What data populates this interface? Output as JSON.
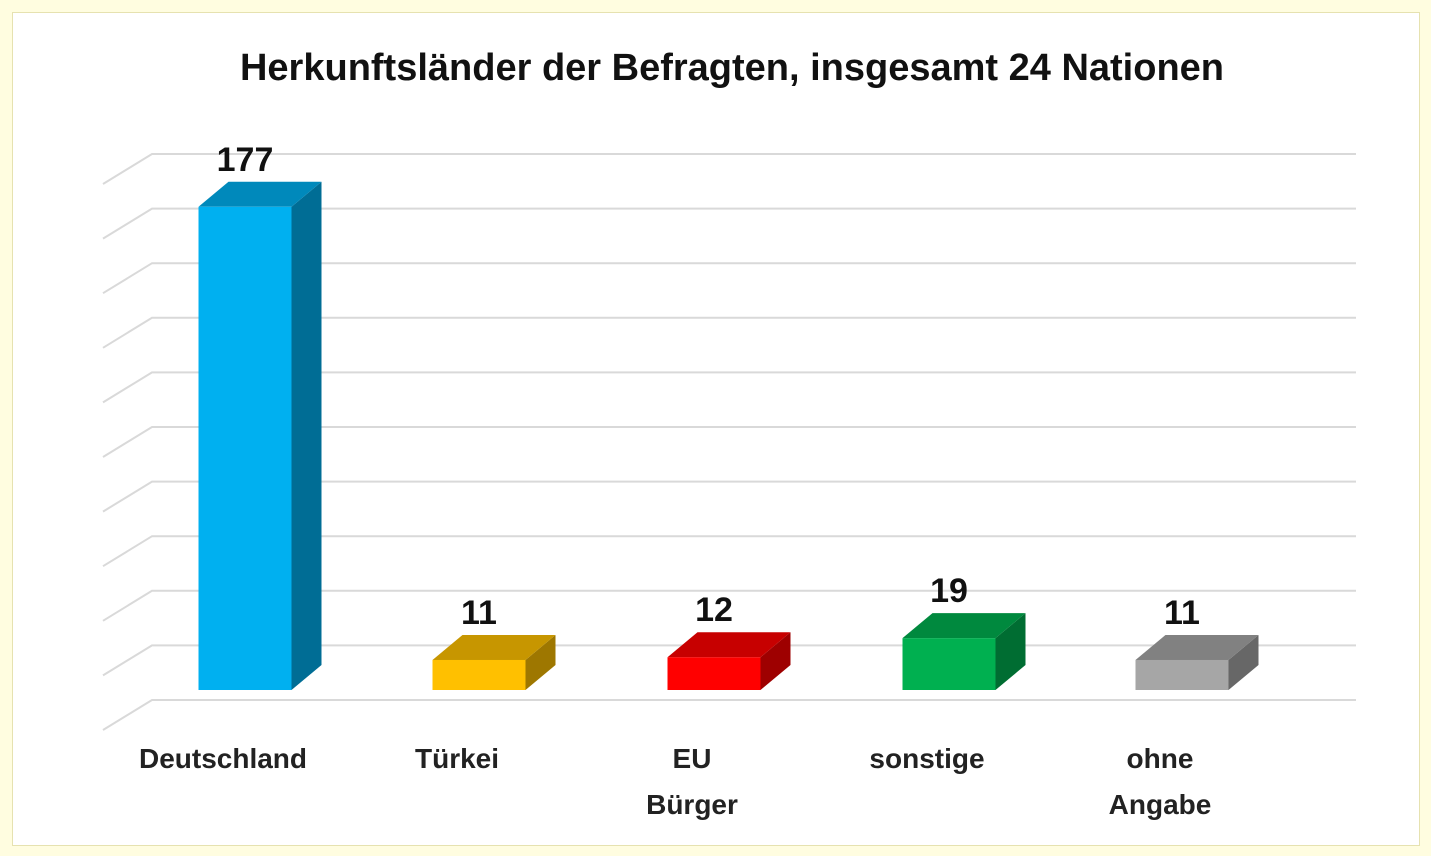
{
  "chart_data": {
    "type": "bar3d",
    "title": "Herkunftsländer der Befragten, insgesamt 24 Nationen",
    "categories": [
      "Deutschland",
      "Türkei",
      "EU Bürger",
      "sonstige",
      "ohne Angabe"
    ],
    "values": [
      177,
      11,
      12,
      19,
      11
    ],
    "colors": [
      "#00b0f0",
      "#ffc000",
      "#ff0000",
      "#00b050",
      "#a6a6a6"
    ],
    "ylim": [
      0,
      200
    ],
    "yticks": [
      0,
      20,
      40,
      60,
      80,
      100,
      120,
      140,
      160,
      180,
      200
    ],
    "grid": true
  }
}
